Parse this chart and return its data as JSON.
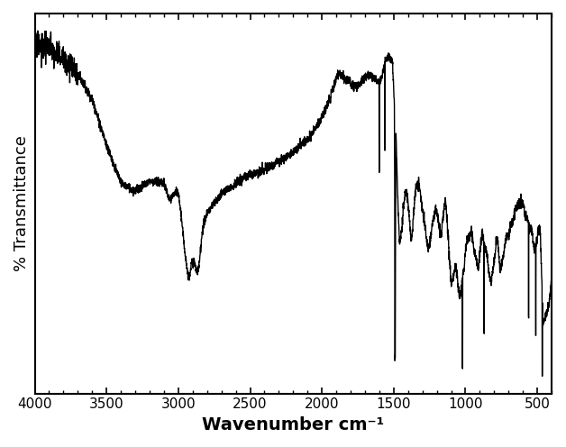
{
  "title": "",
  "xlabel": "Wavenumber cm⁻¹",
  "ylabel": "% Transmittance",
  "xlim": [
    4000,
    400
  ],
  "xticks": [
    4000,
    3500,
    3000,
    2500,
    2000,
    1500,
    1000,
    500
  ],
  "line_color": "#000000",
  "line_width": 1.0,
  "background_color": "#ffffff",
  "xlabel_fontsize": 14,
  "ylabel_fontsize": 13,
  "tick_fontsize": 11,
  "xlabel_bold": true
}
